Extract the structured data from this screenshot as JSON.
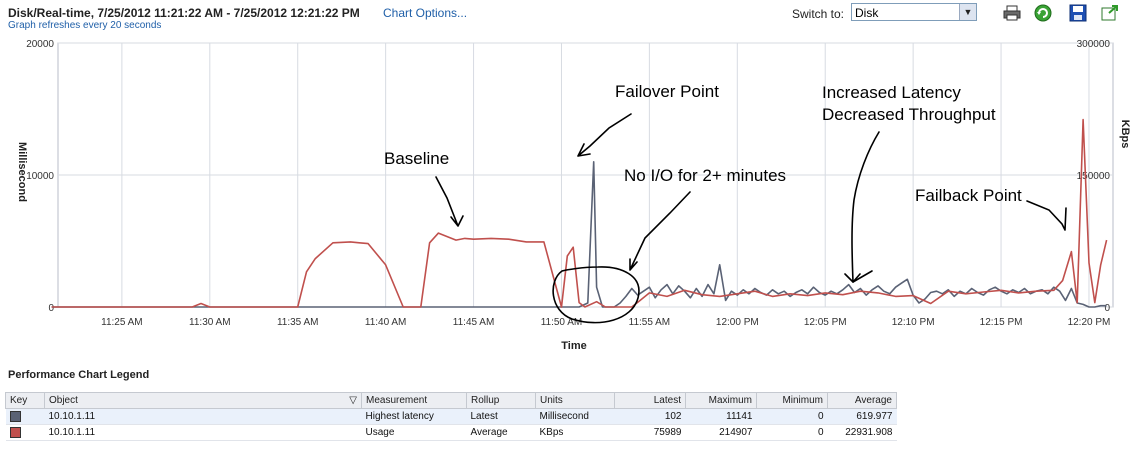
{
  "header": {
    "title": "Disk/Real-time, 7/25/2012 11:21:22 AM - 7/25/2012 12:21:22 PM",
    "chart_options": "Chart Options...",
    "refresh_note": "Graph refreshes every 20 seconds",
    "switch_to_label": "Switch to:",
    "switch_to_value": "Disk",
    "icons": [
      "print-icon",
      "refresh-icon",
      "save-icon",
      "popout-icon"
    ]
  },
  "legend": {
    "title": "Performance Chart Legend",
    "columns": [
      "Key",
      "Object",
      "Measurement",
      "Rollup",
      "Units",
      "Latest",
      "Maximum",
      "Minimum",
      "Average"
    ],
    "rows": [
      {
        "key_color": "#5a6275",
        "object": "10.10.1.11",
        "measurement": "Highest latency",
        "rollup": "Latest",
        "units": "Millisecond",
        "latest": "102",
        "maximum": "11141",
        "minimum": "0",
        "average": "619.977"
      },
      {
        "key_color": "#c0504d",
        "object": "10.10.1.11",
        "measurement": "Usage",
        "rollup": "Average",
        "units": "KBps",
        "latest": "75989",
        "maximum": "214907",
        "minimum": "0",
        "average": "22931.908"
      }
    ]
  },
  "chart_data": {
    "type": "line",
    "xlabel": "Time",
    "ylabel": "Millisecond",
    "y2label": "KBps",
    "x_ticks": [
      "11:25 AM",
      "11:30 AM",
      "11:35 AM",
      "11:40 AM",
      "11:45 AM",
      "11:50 AM",
      "11:55 AM",
      "12:00 PM",
      "12:05 PM",
      "12:10 PM",
      "12:15 PM",
      "12:20 PM"
    ],
    "y_ticks": [
      "0",
      "10000",
      "20000"
    ],
    "y2_ticks": [
      "0",
      "150000",
      "300000"
    ],
    "ylim": [
      0,
      20000
    ],
    "y2lim": [
      0,
      300000
    ],
    "grid": true,
    "series": [
      {
        "name": "Highest latency",
        "axis": "left",
        "color": "#5a6275",
        "x": [
          "11:21",
          "11:51",
          "11:51:30",
          "11:51:50",
          "11:52",
          "11:52:20",
          "11:52:40",
          "11:53",
          "11:53:20",
          "11:53:40",
          "11:54",
          "11:54:20",
          "11:54:40",
          "11:55",
          "11:55:20",
          "11:55:40",
          "11:56",
          "11:56:20",
          "11:56:40",
          "11:57",
          "11:57:20",
          "11:57:40",
          "11:58",
          "11:58:20",
          "11:58:40",
          "11:59",
          "11:59:20",
          "11:59:40",
          "12:00",
          "12:00:20",
          "12:00:40",
          "12:01",
          "12:01:20",
          "12:01:40",
          "12:02",
          "12:02:20",
          "12:02:40",
          "12:03",
          "12:03:20",
          "12:03:40",
          "12:04",
          "12:04:20",
          "12:04:40",
          "12:05",
          "12:05:20",
          "12:05:40",
          "12:06",
          "12:06:20",
          "12:06:40",
          "12:07",
          "12:07:20",
          "12:07:40",
          "12:08",
          "12:08:20",
          "12:08:40",
          "12:09",
          "12:09:20",
          "12:09:40",
          "12:10",
          "12:10:20",
          "12:10:40",
          "12:11",
          "12:11:20",
          "12:11:40",
          "12:12",
          "12:12:20",
          "12:12:40",
          "12:13",
          "12:13:20",
          "12:13:40",
          "12:14",
          "12:14:20",
          "12:14:40",
          "12:15",
          "12:15:20",
          "12:15:40",
          "12:16",
          "12:16:20",
          "12:16:40",
          "12:17",
          "12:17:20",
          "12:17:40",
          "12:18",
          "12:18:20",
          "12:18:40",
          "12:19",
          "12:19:20",
          "12:19:40",
          "12:20",
          "12:20:20",
          "12:20:40",
          "12:21"
        ],
        "values": [
          0,
          0,
          300,
          11000,
          1500,
          0,
          0,
          0,
          300,
          800,
          1400,
          900,
          1200,
          1500,
          700,
          1300,
          1700,
          1000,
          1600,
          1200,
          700,
          1400,
          800,
          1700,
          1000,
          3200,
          500,
          1200,
          900,
          1300,
          1000,
          1400,
          1100,
          900,
          1300,
          1000,
          1200,
          800,
          1100,
          1300,
          1000,
          1500,
          1100,
          900,
          1200,
          1000,
          1300,
          1700,
          1100,
          1400,
          900,
          1300,
          1600,
          1200,
          1000,
          1500,
          1800,
          2100,
          900,
          300,
          600,
          1100,
          1200,
          1000,
          1300,
          800,
          1200,
          1000,
          1400,
          1100,
          900,
          1300,
          1500,
          1200,
          1000,
          1300,
          1100,
          1400,
          1000,
          1200,
          1300,
          1000,
          1500,
          1200,
          500,
          1400,
          300,
          200,
          0,
          0,
          100,
          100
        ]
      },
      {
        "name": "Usage",
        "axis": "right",
        "color": "#c0504d",
        "x": [
          "11:21",
          "11:29",
          "11:29:30",
          "11:30",
          "11:35",
          "11:35:30",
          "11:36",
          "11:37",
          "11:38",
          "11:38:30",
          "11:39",
          "11:40",
          "11:41",
          "11:42",
          "11:42:30",
          "11:43",
          "11:44",
          "11:44:30",
          "11:45",
          "11:46",
          "11:47",
          "11:48",
          "11:49",
          "11:50",
          "11:50:20",
          "11:50:40",
          "11:51",
          "11:51:20",
          "11:52",
          "11:52:30",
          "11:53",
          "11:54",
          "11:54:30",
          "11:55",
          "11:56",
          "11:57",
          "11:58",
          "11:59",
          "12:00",
          "12:01",
          "12:02",
          "12:03",
          "12:04",
          "12:05",
          "12:06",
          "12:07",
          "12:08",
          "12:09",
          "12:10",
          "12:11",
          "12:12",
          "12:13",
          "12:14",
          "12:15",
          "12:16",
          "12:17",
          "12:18",
          "12:18:30",
          "12:19",
          "12:19:20",
          "12:19:40",
          "12:20",
          "12:20:20",
          "12:20:40",
          "12:21"
        ],
        "values": [
          0,
          0,
          4000,
          0,
          0,
          40000,
          55000,
          73000,
          74000,
          73000,
          72000,
          48000,
          0,
          0,
          73000,
          84000,
          76000,
          78000,
          77000,
          78000,
          77000,
          74000,
          74000,
          0,
          58000,
          68000,
          5000,
          0,
          6000,
          0,
          0,
          0,
          8000,
          16000,
          12000,
          19000,
          14000,
          12000,
          15000,
          18000,
          12000,
          15000,
          13000,
          16000,
          14000,
          18000,
          16000,
          12000,
          13000,
          4000,
          18000,
          15000,
          17000,
          19000,
          16000,
          18000,
          19000,
          30000,
          63000,
          5000,
          213000,
          50000,
          5000,
          48000,
          75989
        ]
      }
    ],
    "annotations": [
      "Failover Point",
      "Increased Latency",
      "Decreased Throughput",
      "Baseline",
      "No I/O for 2+ minutes",
      "Failback Point"
    ]
  }
}
